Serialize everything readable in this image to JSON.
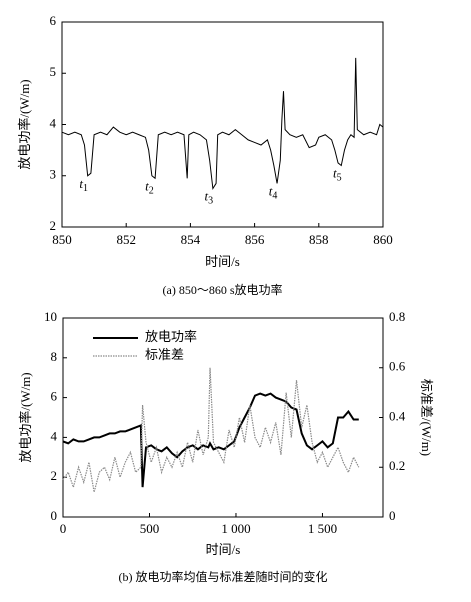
{
  "chart_data": [
    {
      "type": "line",
      "caption": "(a) 850～860 s放电功率",
      "xlabel": "时间/s",
      "ylabel": "放电功率/(W/m)",
      "color": "#000000",
      "x": [
        850.0,
        850.2,
        850.4,
        850.6,
        850.7,
        850.8,
        850.9,
        851.0,
        851.2,
        851.4,
        851.6,
        851.8,
        852.0,
        852.2,
        852.4,
        852.6,
        852.7,
        852.8,
        852.9,
        853.0,
        853.2,
        853.4,
        853.6,
        853.8,
        853.9,
        853.95,
        854.1,
        854.3,
        854.5,
        854.6,
        854.7,
        854.8,
        854.85,
        855.0,
        855.2,
        855.4,
        855.6,
        855.8,
        856.0,
        856.2,
        856.4,
        856.5,
        856.6,
        856.7,
        856.8,
        856.85,
        856.9,
        856.95,
        857.1,
        857.3,
        857.5,
        857.7,
        857.9,
        858.0,
        858.2,
        858.4,
        858.5,
        858.6,
        858.7,
        858.8,
        858.9,
        859.0,
        859.1,
        859.15,
        859.2,
        859.4,
        859.6,
        859.8,
        859.9,
        860.0
      ],
      "values": [
        3.85,
        3.8,
        3.85,
        3.8,
        3.6,
        3.0,
        3.05,
        3.8,
        3.85,
        3.8,
        3.95,
        3.85,
        3.8,
        3.85,
        3.8,
        3.75,
        3.5,
        3.0,
        2.95,
        3.8,
        3.85,
        3.8,
        3.85,
        3.8,
        2.95,
        3.8,
        3.85,
        3.8,
        3.7,
        3.3,
        2.75,
        2.85,
        3.8,
        3.85,
        3.8,
        3.9,
        3.8,
        3.7,
        3.65,
        3.6,
        3.7,
        3.5,
        3.2,
        2.85,
        3.3,
        4.1,
        4.65,
        3.9,
        3.8,
        3.75,
        3.8,
        3.55,
        3.6,
        3.75,
        3.8,
        3.7,
        3.5,
        3.25,
        3.2,
        3.5,
        3.7,
        3.8,
        3.75,
        5.3,
        3.9,
        3.8,
        3.85,
        3.8,
        4.0,
        3.95
      ],
      "annotations": [
        {
          "text": "t1",
          "x": 850.8
        },
        {
          "text": "t2",
          "x": 852.85
        },
        {
          "text": "t3",
          "x": 854.7
        },
        {
          "text": "t4",
          "x": 856.7
        },
        {
          "text": "t5",
          "x": 858.7
        }
      ],
      "xlim": [
        850,
        860
      ],
      "xticks": [
        850,
        852,
        854,
        856,
        858,
        860
      ],
      "ylim": [
        2,
        6
      ],
      "yticks": [
        2,
        3,
        4,
        5,
        6
      ]
    },
    {
      "type": "line",
      "caption": "(b) 放电功率均值与标准差随时间的变化",
      "xlabel": "时间/s",
      "ylabel": "放电功率/(W/m)",
      "y2label": "标准差/(W/m)",
      "legend": "upper left",
      "x": [
        0,
        30,
        60,
        90,
        120,
        150,
        180,
        210,
        240,
        270,
        300,
        330,
        360,
        390,
        420,
        450,
        460,
        480,
        510,
        540,
        570,
        600,
        630,
        660,
        690,
        720,
        750,
        780,
        810,
        840,
        850,
        870,
        900,
        930,
        960,
        990,
        1020,
        1050,
        1080,
        1110,
        1140,
        1170,
        1200,
        1230,
        1260,
        1290,
        1320,
        1350,
        1380,
        1410,
        1440,
        1470,
        1500,
        1530,
        1560,
        1590,
        1620,
        1650,
        1680,
        1710
      ],
      "series": [
        {
          "name": "放电功率",
          "color": "#000000",
          "values": [
            3.8,
            3.7,
            3.9,
            3.8,
            3.8,
            3.9,
            4.0,
            4.0,
            4.1,
            4.2,
            4.2,
            4.3,
            4.3,
            4.4,
            4.5,
            4.6,
            1.5,
            3.5,
            3.6,
            3.4,
            3.3,
            3.5,
            3.2,
            3.0,
            3.3,
            3.5,
            3.6,
            3.4,
            3.6,
            3.5,
            3.7,
            3.4,
            3.5,
            3.4,
            3.6,
            3.8,
            4.5,
            5.0,
            5.5,
            6.1,
            6.2,
            6.1,
            6.2,
            6.0,
            5.9,
            5.8,
            5.5,
            5.4,
            4.2,
            3.6,
            3.4,
            3.6,
            3.8,
            3.5,
            3.7,
            5.0,
            5.0,
            5.3,
            4.9,
            4.9
          ]
        },
        {
          "name": "标准差",
          "color": "#8a8a8a",
          "axis": "y2",
          "values": [
            0.15,
            0.18,
            0.12,
            0.2,
            0.14,
            0.22,
            0.1,
            0.18,
            0.2,
            0.15,
            0.24,
            0.16,
            0.22,
            0.26,
            0.18,
            0.2,
            0.45,
            0.3,
            0.22,
            0.28,
            0.18,
            0.24,
            0.2,
            0.26,
            0.2,
            0.3,
            0.22,
            0.35,
            0.25,
            0.32,
            0.6,
            0.3,
            0.26,
            0.22,
            0.35,
            0.28,
            0.4,
            0.3,
            0.45,
            0.32,
            0.28,
            0.36,
            0.3,
            0.38,
            0.25,
            0.5,
            0.32,
            0.55,
            0.36,
            0.45,
            0.3,
            0.22,
            0.26,
            0.2,
            0.24,
            0.28,
            0.22,
            0.18,
            0.24,
            0.2
          ]
        }
      ],
      "xlim": [
        0,
        1850
      ],
      "xticks": [
        0,
        500,
        {
          "value": 1000,
          "label": "1 000"
        },
        {
          "value": 1500,
          "label": "1 500"
        }
      ],
      "ylim": [
        0,
        10
      ],
      "yticks": [
        0,
        2,
        4,
        6,
        8,
        10
      ],
      "y2lim": [
        0,
        0.8
      ],
      "y2ticks": [
        0,
        0.2,
        0.4,
        0.6,
        0.8
      ]
    }
  ]
}
